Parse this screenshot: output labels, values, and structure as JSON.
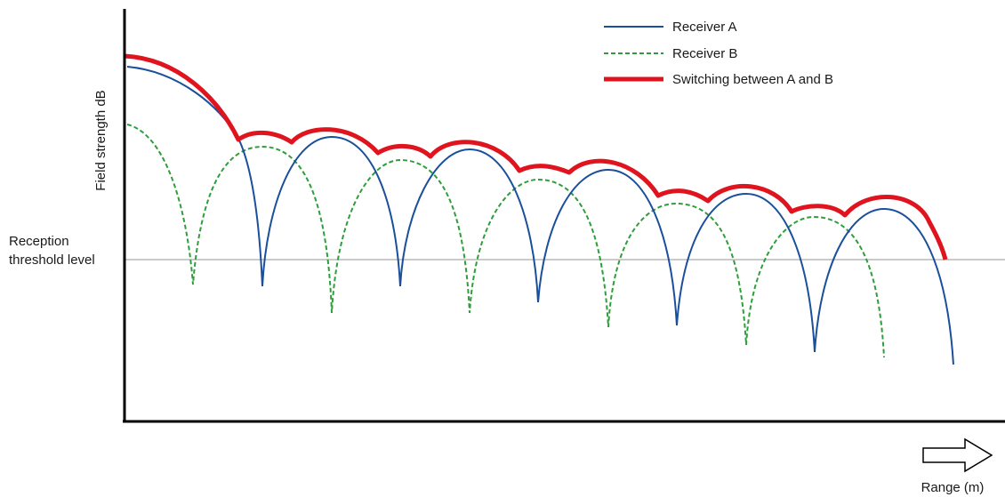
{
  "axes": {
    "y_label": "Field strength dB",
    "x_label": "Range (m)",
    "threshold_label_line1": "Reception",
    "threshold_label_line2": "threshold level"
  },
  "legend": [
    {
      "key": "a",
      "label": "Receiver A",
      "color": "#1a4f9c",
      "style": "solid"
    },
    {
      "key": "b",
      "label": "Receiver B",
      "color": "#2e9e3a",
      "style": "dashed"
    },
    {
      "key": "sw",
      "label": "Switching between A and B",
      "color": "#e0141e",
      "style": "thick"
    }
  ],
  "colors": {
    "axis": "#000000",
    "threshold_line": "#aaaaaa"
  },
  "icons": {
    "range_arrow": "right-arrow-outline-icon"
  }
}
